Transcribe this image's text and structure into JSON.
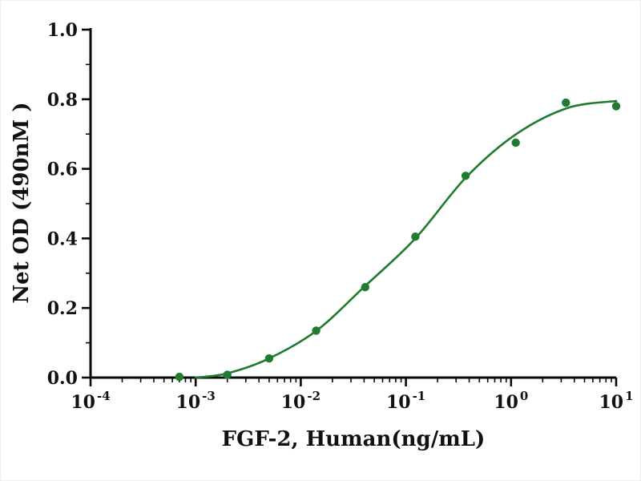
{
  "chart_data": {
    "type": "scatter",
    "title": "",
    "xlabel": "FGF-2, Human(ng/mL)",
    "ylabel": "Net OD (490nM )",
    "x_scale": "log10",
    "xlim_exponents": [
      -4,
      1
    ],
    "ylim": [
      0,
      1.0
    ],
    "x_tick_base": "10",
    "x_tick_exponents": [
      -4,
      -3,
      -2,
      -1,
      0,
      1
    ],
    "y_tick_labels": [
      "0.0",
      "0.2",
      "0.4",
      "0.6",
      "0.8",
      "1.0"
    ],
    "y_major_step": 0.2,
    "y_minor_step": 0.1,
    "grid": "off",
    "legend": "none",
    "points": {
      "x": [
        0.0007,
        0.002,
        0.005,
        0.014,
        0.041,
        0.123,
        0.37,
        1.11,
        3.33,
        10
      ],
      "y": [
        0.002,
        0.008,
        0.055,
        0.135,
        0.26,
        0.405,
        0.58,
        0.675,
        0.79,
        0.78
      ]
    },
    "fit_curve": {
      "log10x": [
        -3.0,
        -2.7,
        -2.3,
        -1.85,
        -1.4,
        -0.91,
        -0.43,
        0.05,
        0.54,
        1.0
      ],
      "y": [
        0.0,
        0.012,
        0.055,
        0.135,
        0.26,
        0.4,
        0.575,
        0.7,
        0.775,
        0.795
      ]
    },
    "colors": {
      "series": "#1e7b30",
      "axis": "#0a0a0a",
      "background": "#ffffff"
    }
  }
}
